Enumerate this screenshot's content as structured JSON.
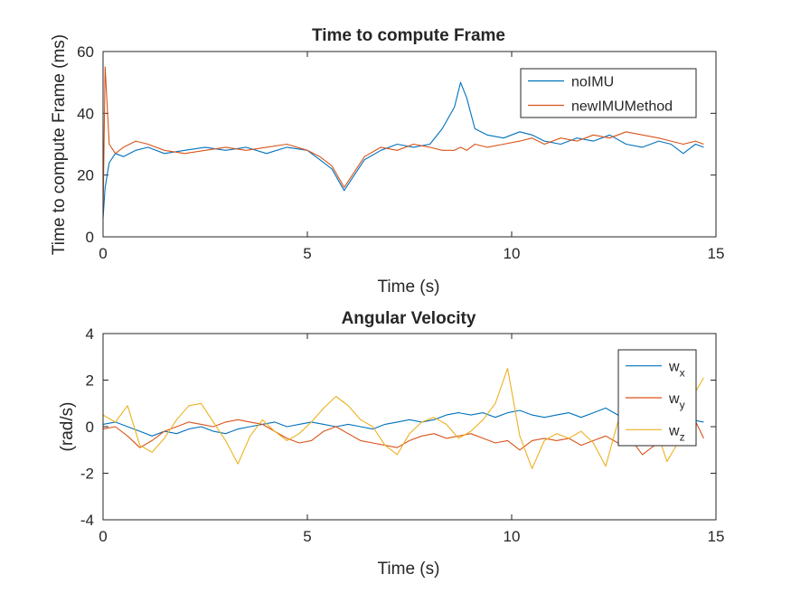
{
  "chart_data": [
    {
      "type": "line",
      "title": "Time to compute Frame",
      "xlabel": "Time (s)",
      "ylabel": "Time to compute Frame (ms)",
      "xlim": [
        0,
        15
      ],
      "ylim": [
        0,
        60
      ],
      "xticks": [
        "0",
        "5",
        "10",
        "15"
      ],
      "yticks": [
        "0",
        "20",
        "40",
        "60"
      ],
      "grid": false,
      "legend_position": "top-right",
      "series": [
        {
          "name": "noIMU",
          "color": "#0072BD",
          "x": [
            0,
            0.05,
            0.15,
            0.3,
            0.5,
            0.8,
            1.1,
            1.5,
            2.0,
            2.5,
            3.0,
            3.5,
            4.0,
            4.5,
            5.0,
            5.3,
            5.6,
            5.9,
            6.1,
            6.4,
            6.8,
            7.2,
            7.6,
            8.0,
            8.3,
            8.6,
            8.75,
            8.9,
            9.1,
            9.4,
            9.8,
            10.2,
            10.5,
            10.8,
            11.2,
            11.6,
            12.0,
            12.4,
            12.8,
            13.2,
            13.6,
            13.9,
            14.2,
            14.5,
            14.7
          ],
          "y": [
            6,
            16,
            24,
            27,
            26,
            28,
            29,
            27,
            28,
            29,
            28,
            29,
            27,
            29,
            28,
            25,
            22,
            15,
            19,
            25,
            28,
            30,
            29,
            30,
            35,
            42,
            50,
            45,
            35,
            33,
            32,
            34,
            33,
            31,
            30,
            32,
            31,
            33,
            30,
            29,
            31,
            30,
            27,
            30,
            29
          ]
        },
        {
          "name": "newIMUMethod",
          "color": "#D95319",
          "x": [
            0,
            0.05,
            0.15,
            0.3,
            0.5,
            0.8,
            1.1,
            1.5,
            2.0,
            2.5,
            3.0,
            3.5,
            4.0,
            4.5,
            5.0,
            5.3,
            5.6,
            5.9,
            6.1,
            6.4,
            6.8,
            7.2,
            7.6,
            8.0,
            8.3,
            8.6,
            8.75,
            8.9,
            9.1,
            9.4,
            9.8,
            10.2,
            10.5,
            10.8,
            11.2,
            11.6,
            12.0,
            12.4,
            12.8,
            13.2,
            13.6,
            13.9,
            14.2,
            14.5,
            14.7
          ],
          "y": [
            7,
            55,
            30,
            27,
            29,
            31,
            30,
            28,
            27,
            28,
            29,
            28,
            29,
            30,
            28,
            26,
            23,
            16,
            20,
            26,
            29,
            28,
            30,
            29,
            28,
            28,
            29,
            28,
            30,
            29,
            30,
            31,
            32,
            30,
            32,
            31,
            33,
            32,
            34,
            33,
            32,
            31,
            30,
            31,
            30
          ]
        }
      ]
    },
    {
      "type": "line",
      "title": "Angular Velocity",
      "xlabel": "Time (s)",
      "ylabel": "(rad/s)",
      "xlim": [
        0,
        15
      ],
      "ylim": [
        -4,
        4
      ],
      "xticks": [
        "0",
        "5",
        "10",
        "15"
      ],
      "yticks": [
        "-4",
        "-2",
        "0",
        "2",
        "4"
      ],
      "grid": false,
      "legend_position": "top-right",
      "series": [
        {
          "name": "w",
          "subscript": "x",
          "color": "#0072BD",
          "x": [
            0,
            0.3,
            0.6,
            0.9,
            1.2,
            1.5,
            1.8,
            2.1,
            2.4,
            2.7,
            3.0,
            3.3,
            3.6,
            3.9,
            4.2,
            4.5,
            4.8,
            5.1,
            5.4,
            5.7,
            6.0,
            6.3,
            6.6,
            6.9,
            7.2,
            7.5,
            7.8,
            8.1,
            8.4,
            8.7,
            9.0,
            9.3,
            9.6,
            9.9,
            10.2,
            10.5,
            10.8,
            11.1,
            11.4,
            11.7,
            12.0,
            12.3,
            12.6,
            12.9,
            13.2,
            13.5,
            13.8,
            14.1,
            14.4,
            14.7
          ],
          "y": [
            0.1,
            0.2,
            0.0,
            -0.2,
            -0.4,
            -0.2,
            -0.3,
            -0.1,
            0.0,
            -0.2,
            -0.3,
            -0.1,
            0.0,
            0.1,
            0.2,
            0.0,
            0.1,
            0.2,
            0.1,
            0.0,
            0.1,
            0.0,
            -0.1,
            0.1,
            0.2,
            0.3,
            0.2,
            0.3,
            0.5,
            0.6,
            0.5,
            0.6,
            0.4,
            0.6,
            0.7,
            0.5,
            0.4,
            0.5,
            0.6,
            0.4,
            0.6,
            0.8,
            0.5,
            0.2,
            0.3,
            0.4,
            0.3,
            0.2,
            0.3,
            0.2
          ]
        },
        {
          "name": "w",
          "subscript": "y",
          "color": "#D95319",
          "x": [
            0,
            0.3,
            0.6,
            0.9,
            1.2,
            1.5,
            1.8,
            2.1,
            2.4,
            2.7,
            3.0,
            3.3,
            3.6,
            3.9,
            4.2,
            4.5,
            4.8,
            5.1,
            5.4,
            5.7,
            6.0,
            6.3,
            6.6,
            6.9,
            7.2,
            7.5,
            7.8,
            8.1,
            8.4,
            8.7,
            9.0,
            9.3,
            9.6,
            9.9,
            10.2,
            10.5,
            10.8,
            11.1,
            11.4,
            11.7,
            12.0,
            12.3,
            12.6,
            12.9,
            13.2,
            13.5,
            13.8,
            14.1,
            14.4,
            14.7
          ],
          "y": [
            -0.1,
            0.0,
            -0.4,
            -0.9,
            -0.6,
            -0.2,
            0.0,
            0.2,
            0.1,
            0.0,
            0.2,
            0.3,
            0.2,
            0.1,
            -0.2,
            -0.5,
            -0.7,
            -0.6,
            -0.2,
            0.0,
            -0.3,
            -0.6,
            -0.7,
            -0.8,
            -0.9,
            -0.6,
            -0.4,
            -0.3,
            -0.5,
            -0.4,
            -0.3,
            -0.5,
            -0.7,
            -0.6,
            -1.0,
            -0.6,
            -0.5,
            -0.6,
            -0.5,
            -0.8,
            -0.6,
            -0.4,
            -0.7,
            -0.5,
            -1.2,
            -0.8,
            -0.4,
            0.2,
            0.6,
            -0.5
          ]
        },
        {
          "name": "w",
          "subscript": "z",
          "color": "#EDB120",
          "x": [
            0,
            0.3,
            0.6,
            0.9,
            1.2,
            1.5,
            1.8,
            2.1,
            2.4,
            2.7,
            3.0,
            3.3,
            3.6,
            3.9,
            4.2,
            4.5,
            4.8,
            5.1,
            5.4,
            5.7,
            6.0,
            6.3,
            6.6,
            6.9,
            7.2,
            7.5,
            7.8,
            8.1,
            8.4,
            8.7,
            9.0,
            9.3,
            9.6,
            9.9,
            10.2,
            10.5,
            10.8,
            11.1,
            11.4,
            11.7,
            12.0,
            12.3,
            12.6,
            12.9,
            13.2,
            13.5,
            13.8,
            14.1,
            14.4,
            14.7
          ],
          "y": [
            0.5,
            0.2,
            0.9,
            -0.8,
            -1.1,
            -0.5,
            0.3,
            0.9,
            1.0,
            0.2,
            -0.6,
            -1.6,
            -0.4,
            0.3,
            -0.2,
            -0.6,
            -0.3,
            0.2,
            0.8,
            1.3,
            0.9,
            0.3,
            0.0,
            -0.8,
            -1.2,
            -0.3,
            0.2,
            0.4,
            0.1,
            -0.5,
            -0.2,
            0.3,
            1.0,
            2.5,
            -0.4,
            -1.8,
            -0.6,
            -0.3,
            -0.5,
            -0.2,
            -0.7,
            -1.7,
            0.2,
            0.0,
            -0.8,
            0.1,
            -1.5,
            -0.6,
            1.2,
            2.1
          ]
        }
      ]
    }
  ]
}
